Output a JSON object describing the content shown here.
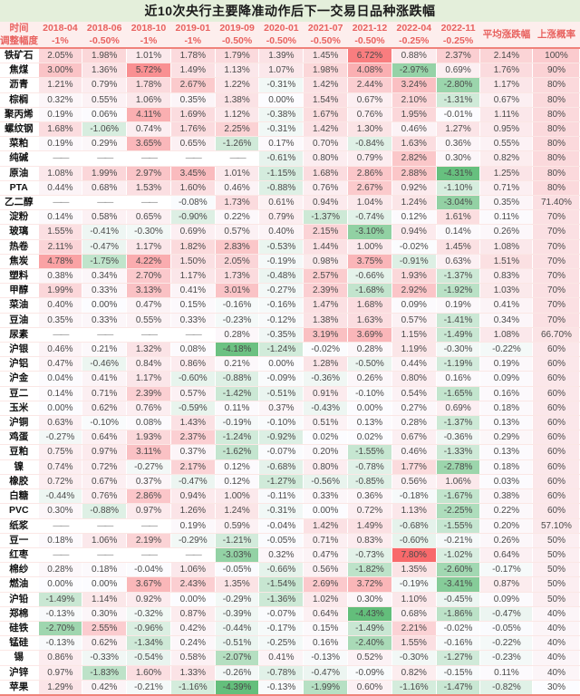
{
  "accent_colors": {
    "title_bg": "#e4efdb",
    "header_bg": "#fdeeed",
    "header_text": "#e8625f",
    "divider": "#f0837b",
    "scale_red": "#F8696B",
    "scale_mid": "#FCFCFF",
    "scale_green": "#63BE7B"
  },
  "chart_data": {
    "type": "heatmap",
    "title": "近10次央行主要降准动作后下一交易日品种涨跌幅",
    "row_header1": "时间",
    "row_header2": "调整幅度",
    "avg_label": "平均涨跌幅",
    "prob_label": "上涨概率",
    "columns": [
      "2018-04",
      "2018-06",
      "2018-10",
      "2019-01",
      "2019-09",
      "2020-01",
      "2021-07",
      "2021-12",
      "2022-04",
      "2022-11"
    ],
    "adjustments": [
      "-1%",
      "-0.50%",
      "-1%",
      "-1%",
      "-0.50%",
      "-0.50%",
      "-0.50%",
      "-0.50%",
      "-0.25%",
      "-0.25%"
    ],
    "value_unit": "%",
    "missing_marker": "——",
    "color_domain": [
      -4.43,
      7.8
    ],
    "rows": [
      {
        "name": "铁矿石",
        "values": [
          2.05,
          1.98,
          1.01,
          1.78,
          1.79,
          1.39,
          1.45,
          6.72,
          0.88,
          2.37
        ],
        "avg": 2.14,
        "prob": "100%"
      },
      {
        "name": "焦煤",
        "values": [
          3.0,
          1.36,
          5.72,
          1.49,
          1.13,
          1.07,
          1.98,
          4.08,
          -2.97,
          0.69
        ],
        "avg": 1.76,
        "prob": "90%"
      },
      {
        "name": "沥青",
        "values": [
          1.21,
          0.79,
          1.78,
          2.67,
          1.22,
          -0.31,
          1.42,
          2.44,
          3.24,
          -2.8
        ],
        "avg": 1.17,
        "prob": "80%"
      },
      {
        "name": "棕榈",
        "values": [
          0.32,
          0.55,
          1.06,
          0.35,
          1.38,
          0.0,
          1.54,
          0.67,
          2.1,
          -1.31
        ],
        "avg": 0.67,
        "prob": "80%"
      },
      {
        "name": "聚丙烯",
        "values": [
          0.19,
          0.06,
          4.11,
          1.69,
          1.12,
          -0.38,
          1.67,
          0.76,
          1.95,
          -0.01
        ],
        "avg": 1.11,
        "prob": "80%"
      },
      {
        "name": "螺纹钢",
        "values": [
          1.68,
          -1.06,
          0.74,
          1.76,
          2.25,
          -0.31,
          1.42,
          1.3,
          0.46,
          1.27
        ],
        "avg": 0.95,
        "prob": "80%"
      },
      {
        "name": "菜粕",
        "values": [
          0.19,
          0.29,
          3.65,
          0.65,
          -1.26,
          0.17,
          0.7,
          -0.84,
          1.63,
          0.36
        ],
        "avg": 0.55,
        "prob": "80%"
      },
      {
        "name": "纯碱",
        "values": [
          null,
          null,
          null,
          null,
          null,
          -0.61,
          0.8,
          0.79,
          2.82,
          0.3
        ],
        "avg": 0.82,
        "prob": "80%"
      },
      {
        "name": "原油",
        "values": [
          1.08,
          1.99,
          2.97,
          3.45,
          1.01,
          -1.15,
          1.68,
          2.86,
          2.88,
          -4.31
        ],
        "avg": 1.25,
        "prob": "80%"
      },
      {
        "name": "PTA",
        "values": [
          0.44,
          0.68,
          1.53,
          1.6,
          0.46,
          -0.88,
          0.76,
          2.67,
          0.92,
          -1.1
        ],
        "avg": 0.71,
        "prob": "80%"
      },
      {
        "name": "乙二醇",
        "values": [
          null,
          null,
          null,
          -0.08,
          1.73,
          0.61,
          0.94,
          1.04,
          1.24,
          -3.04
        ],
        "avg": 0.35,
        "prob": "71.40%"
      },
      {
        "name": "淀粉",
        "values": [
          0.14,
          0.58,
          0.65,
          -0.9,
          0.22,
          0.79,
          -1.37,
          -0.74,
          0.12,
          1.61
        ],
        "avg": 0.11,
        "prob": "70%"
      },
      {
        "name": "玻璃",
        "values": [
          1.55,
          -0.41,
          -0.3,
          0.69,
          0.57,
          0.4,
          2.15,
          -3.1,
          0.94,
          0.14
        ],
        "avg": 0.26,
        "prob": "70%"
      },
      {
        "name": "热卷",
        "values": [
          2.11,
          -0.47,
          1.17,
          1.82,
          2.83,
          -0.53,
          1.44,
          1.0,
          -0.02,
          1.45
        ],
        "avg": 1.08,
        "prob": "70%"
      },
      {
        "name": "焦炭",
        "values": [
          4.78,
          -1.75,
          4.22,
          1.5,
          2.05,
          -0.19,
          0.98,
          3.75,
          -0.91,
          0.63
        ],
        "avg": 1.51,
        "prob": "70%"
      },
      {
        "name": "塑料",
        "values": [
          0.38,
          0.34,
          2.7,
          1.17,
          1.73,
          -0.48,
          2.57,
          -0.66,
          1.93,
          -1.37
        ],
        "avg": 0.83,
        "prob": "70%"
      },
      {
        "name": "甲醇",
        "values": [
          1.99,
          0.33,
          3.13,
          0.41,
          3.01,
          -0.27,
          2.39,
          -1.68,
          2.92,
          -1.92
        ],
        "avg": 1.03,
        "prob": "70%"
      },
      {
        "name": "菜油",
        "values": [
          0.4,
          0.0,
          0.47,
          0.15,
          -0.16,
          -0.16,
          1.47,
          1.68,
          0.09,
          0.19
        ],
        "avg": 0.41,
        "prob": "70%"
      },
      {
        "name": "豆油",
        "values": [
          0.35,
          0.33,
          0.55,
          0.33,
          -0.23,
          -0.12,
          1.38,
          1.63,
          0.57,
          -1.41
        ],
        "avg": 0.34,
        "prob": "70%"
      },
      {
        "name": "尿素",
        "values": [
          null,
          null,
          null,
          null,
          0.28,
          -0.35,
          3.19,
          3.69,
          1.15,
          -1.49
        ],
        "avg": 1.08,
        "prob": "66.70%"
      },
      {
        "name": "沪银",
        "values": [
          0.46,
          0.21,
          1.32,
          0.08,
          -4.18,
          -1.24,
          -0.02,
          0.28,
          1.19,
          -0.3
        ],
        "avg": -0.22,
        "prob": "60%"
      },
      {
        "name": "沪铝",
        "values": [
          0.47,
          -0.46,
          0.84,
          0.86,
          0.21,
          0.0,
          1.28,
          -0.5,
          0.44,
          -1.19
        ],
        "avg": 0.19,
        "prob": "60%"
      },
      {
        "name": "沪金",
        "values": [
          0.04,
          0.41,
          1.17,
          -0.6,
          -0.88,
          -0.09,
          -0.36,
          0.26,
          0.8,
          0.16
        ],
        "avg": 0.09,
        "prob": "60%"
      },
      {
        "name": "豆二",
        "values": [
          0.14,
          0.71,
          2.39,
          0.57,
          -1.42,
          -0.51,
          0.91,
          -0.1,
          0.54,
          -1.65
        ],
        "avg": 0.16,
        "prob": "60%"
      },
      {
        "name": "玉米",
        "values": [
          0.0,
          0.62,
          0.76,
          -0.59,
          0.11,
          0.37,
          -0.43,
          0.0,
          0.27,
          0.69
        ],
        "avg": 0.18,
        "prob": "60%"
      },
      {
        "name": "沪铜",
        "values": [
          0.63,
          -0.1,
          0.08,
          1.43,
          -0.19,
          -0.1,
          0.51,
          0.13,
          0.28,
          -1.37
        ],
        "avg": 0.13,
        "prob": "60%"
      },
      {
        "name": "鸡蛋",
        "values": [
          -0.27,
          0.64,
          1.93,
          2.37,
          -1.24,
          -0.92,
          0.02,
          0.02,
          0.67,
          -0.36
        ],
        "avg": 0.29,
        "prob": "60%"
      },
      {
        "name": "豆粕",
        "values": [
          0.75,
          0.97,
          3.11,
          0.37,
          -1.62,
          -0.07,
          0.2,
          -1.55,
          0.46,
          -1.33
        ],
        "avg": 0.13,
        "prob": "60%"
      },
      {
        "name": "镍",
        "values": [
          0.74,
          0.72,
          -0.27,
          2.17,
          0.12,
          -0.68,
          0.8,
          -0.78,
          1.77,
          -2.78
        ],
        "avg": 0.18,
        "prob": "60%"
      },
      {
        "name": "橡胶",
        "values": [
          0.72,
          0.67,
          0.37,
          -0.47,
          0.12,
          -1.27,
          -0.56,
          -0.85,
          0.56,
          1.06
        ],
        "avg": 0.03,
        "prob": "60%"
      },
      {
        "name": "白糖",
        "values": [
          -0.44,
          0.76,
          2.86,
          0.94,
          1.0,
          -0.11,
          0.33,
          0.36,
          -0.18,
          -1.67
        ],
        "avg": 0.38,
        "prob": "60%"
      },
      {
        "name": "PVC",
        "values": [
          0.3,
          -0.88,
          0.97,
          1.26,
          1.24,
          -0.31,
          0.0,
          0.72,
          1.13,
          -2.25
        ],
        "avg": 0.22,
        "prob": "60%"
      },
      {
        "name": "纸浆",
        "values": [
          null,
          null,
          null,
          0.19,
          0.59,
          -0.04,
          1.42,
          1.49,
          -0.68,
          -1.55
        ],
        "avg": 0.2,
        "prob": "57.10%"
      },
      {
        "name": "豆一",
        "values": [
          0.18,
          1.06,
          2.19,
          -0.29,
          -1.21,
          -0.05,
          0.71,
          0.83,
          -0.6,
          -0.21
        ],
        "avg": 0.26,
        "prob": "50%"
      },
      {
        "name": "红枣",
        "values": [
          null,
          null,
          null,
          null,
          -3.03,
          0.32,
          0.47,
          -0.73,
          7.8,
          -1.02
        ],
        "avg": 0.64,
        "prob": "50%"
      },
      {
        "name": "棉纱",
        "values": [
          0.28,
          0.18,
          -0.04,
          1.06,
          -0.05,
          -0.66,
          0.56,
          -1.82,
          1.35,
          -2.6
        ],
        "avg": -0.17,
        "prob": "50%"
      },
      {
        "name": "燃油",
        "values": [
          0.0,
          0.0,
          3.67,
          2.43,
          1.35,
          -1.54,
          2.69,
          3.72,
          -0.19,
          -3.41
        ],
        "avg": 0.87,
        "prob": "50%"
      },
      {
        "name": "沪铅",
        "values": [
          -1.49,
          1.14,
          0.92,
          0.0,
          -0.29,
          -1.36,
          1.02,
          0.3,
          1.1,
          -0.45
        ],
        "avg": 0.09,
        "prob": "50%"
      },
      {
        "name": "郑棉",
        "values": [
          -0.13,
          0.3,
          -0.32,
          0.87,
          -0.39,
          -0.07,
          0.64,
          -4.43,
          0.68,
          -1.86
        ],
        "avg": -0.47,
        "prob": "40%"
      },
      {
        "name": "硅铁",
        "values": [
          -2.7,
          2.55,
          -0.96,
          0.42,
          -0.44,
          -0.17,
          0.15,
          -1.49,
          2.21,
          -0.02
        ],
        "avg": -0.05,
        "prob": "40%"
      },
      {
        "name": "锰硅",
        "values": [
          -0.13,
          0.62,
          -1.34,
          0.24,
          -0.51,
          -0.25,
          0.16,
          -2.4,
          1.55,
          -0.16
        ],
        "avg": -0.22,
        "prob": "40%"
      },
      {
        "name": "锡",
        "values": [
          0.86,
          -0.33,
          -0.54,
          0.58,
          -2.07,
          0.41,
          -0.13,
          0.52,
          -0.3,
          -1.27
        ],
        "avg": -0.23,
        "prob": "40%"
      },
      {
        "name": "沪锌",
        "values": [
          0.97,
          -1.83,
          1.6,
          1.33,
          -0.26,
          -0.78,
          -0.47,
          -0.09,
          0.82,
          -0.15
        ],
        "avg": 0.11,
        "prob": "40%"
      },
      {
        "name": "苹果",
        "values": [
          1.29,
          0.42,
          -0.21,
          -1.16,
          -4.39,
          -0.13,
          -1.99,
          0.6,
          -1.16,
          -1.47
        ],
        "avg": -0.82,
        "prob": "30%"
      }
    ]
  }
}
